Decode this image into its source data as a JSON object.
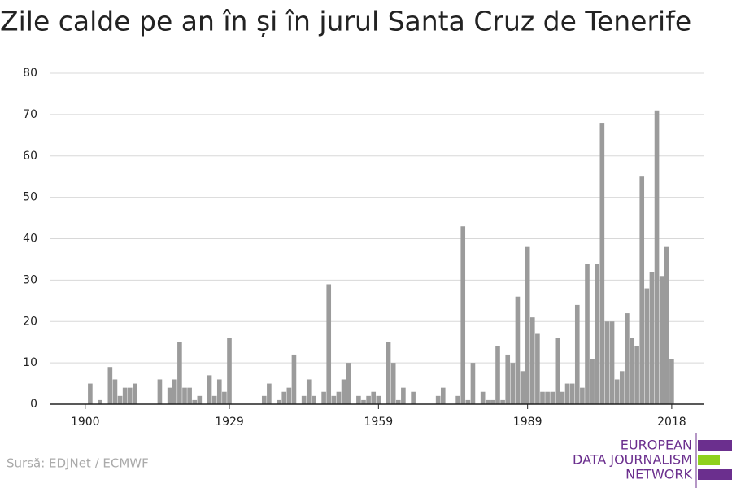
{
  "chart_data": {
    "type": "bar",
    "title": "Zile calde pe an în și în jurul Santa Cruz de Tenerife",
    "source": "Sursă: EDJNet / ECMWF",
    "x": [
      1900,
      1901,
      1902,
      1903,
      1904,
      1905,
      1906,
      1907,
      1908,
      1909,
      1910,
      1911,
      1912,
      1913,
      1914,
      1915,
      1916,
      1917,
      1918,
      1919,
      1920,
      1921,
      1922,
      1923,
      1924,
      1925,
      1926,
      1927,
      1928,
      1929,
      1930,
      1931,
      1932,
      1933,
      1934,
      1935,
      1936,
      1937,
      1938,
      1939,
      1940,
      1941,
      1942,
      1943,
      1944,
      1945,
      1946,
      1947,
      1948,
      1949,
      1950,
      1951,
      1952,
      1953,
      1954,
      1955,
      1956,
      1957,
      1958,
      1959,
      1960,
      1961,
      1962,
      1963,
      1964,
      1965,
      1966,
      1967,
      1968,
      1969,
      1970,
      1971,
      1972,
      1973,
      1974,
      1975,
      1976,
      1977,
      1978,
      1979,
      1980,
      1981,
      1982,
      1983,
      1984,
      1985,
      1986,
      1987,
      1988,
      1989,
      1990,
      1991,
      1992,
      1993,
      1994,
      1995,
      1996,
      1997,
      1998,
      1999,
      2000,
      2001,
      2002,
      2003,
      2004,
      2005,
      2006,
      2007,
      2008,
      2009,
      2010,
      2011,
      2012,
      2013,
      2014,
      2015,
      2016,
      2017,
      2018
    ],
    "values": [
      0,
      5,
      0,
      1,
      0,
      9,
      6,
      2,
      4,
      4,
      5,
      0,
      0,
      0,
      0,
      6,
      0,
      4,
      6,
      15,
      4,
      4,
      1,
      2,
      0,
      7,
      2,
      6,
      3,
      16,
      0,
      0,
      0,
      0,
      0,
      0,
      2,
      5,
      0,
      1,
      3,
      4,
      12,
      0,
      2,
      6,
      2,
      0,
      3,
      29,
      2,
      3,
      6,
      10,
      0,
      2,
      1,
      2,
      3,
      2,
      0,
      15,
      10,
      1,
      4,
      0,
      3,
      0,
      0,
      0,
      0,
      2,
      4,
      0,
      0,
      2,
      43,
      1,
      10,
      0,
      3,
      1,
      1,
      14,
      1,
      12,
      10,
      26,
      8,
      38,
      21,
      17,
      3,
      3,
      3,
      16,
      3,
      5,
      5,
      24,
      4,
      34,
      11,
      34,
      68,
      20,
      20,
      6,
      8,
      22,
      16,
      14,
      55,
      28,
      32,
      71,
      31,
      38,
      11
    ],
    "color": "#9b9b9b",
    "xlim": [
      1893,
      2024.4
    ],
    "xticks": [
      1900,
      1929,
      1959,
      1989,
      2018
    ],
    "ylim": [
      0,
      80
    ],
    "yticks": [
      0,
      10,
      20,
      30,
      40,
      50,
      60,
      70,
      80
    ],
    "grid": true
  },
  "logo": [
    "EUROPEAN",
    "DATA JOURNALISM",
    "NETWORK"
  ]
}
